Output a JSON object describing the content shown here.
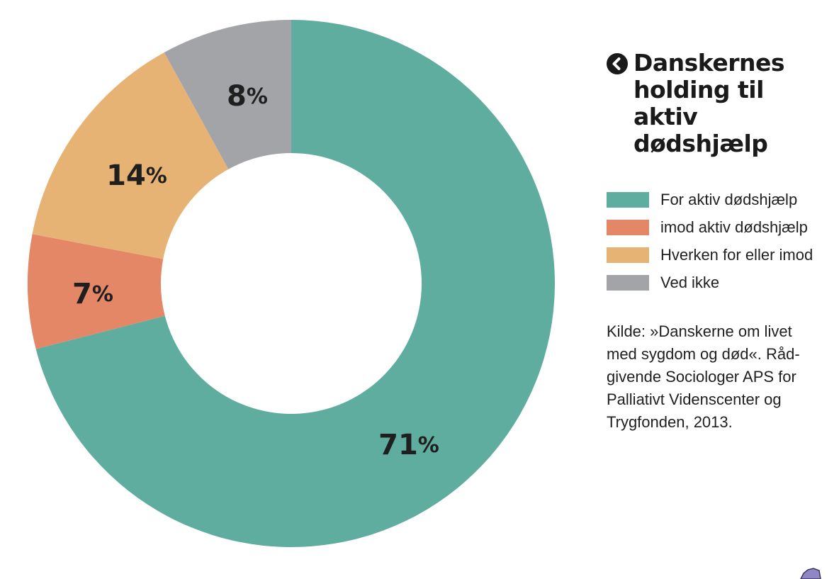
{
  "chart_data": {
    "type": "pie",
    "donut": true,
    "title": "Danskernes holding til aktiv dødshjælp",
    "title_parts": [
      "Danskernes",
      "holding til aktiv",
      "dødshjælp"
    ],
    "slices": [
      {
        "name": "For aktiv dødshjælp",
        "value": 71,
        "label_num": "71",
        "label_unit": "%",
        "color": "#5fad9f"
      },
      {
        "name": "imod aktiv dødshjælp",
        "value": 7,
        "label_num": "7",
        "label_unit": "%",
        "color": "#e38766"
      },
      {
        "name": "Hverken for eller imod",
        "value": 14,
        "label_num": "14",
        "label_unit": "%",
        "color": "#e7b374"
      },
      {
        "name": "Ved ikke",
        "value": 8,
        "label_num": "8",
        "label_unit": "%",
        "color": "#a3a4a7"
      }
    ],
    "start_angle_deg": 0,
    "direction": "clockwise",
    "legend_position": "right",
    "source_lines": [
      "Kilde: »Danskerne om livet",
      "med sygdom og død«. Råd-",
      "givende Sociologer APS for",
      "Palliativt Videnscenter og",
      "Trygfonden, 2013."
    ]
  },
  "icons": {
    "title_icon": "chevron-left-circle-icon"
  }
}
